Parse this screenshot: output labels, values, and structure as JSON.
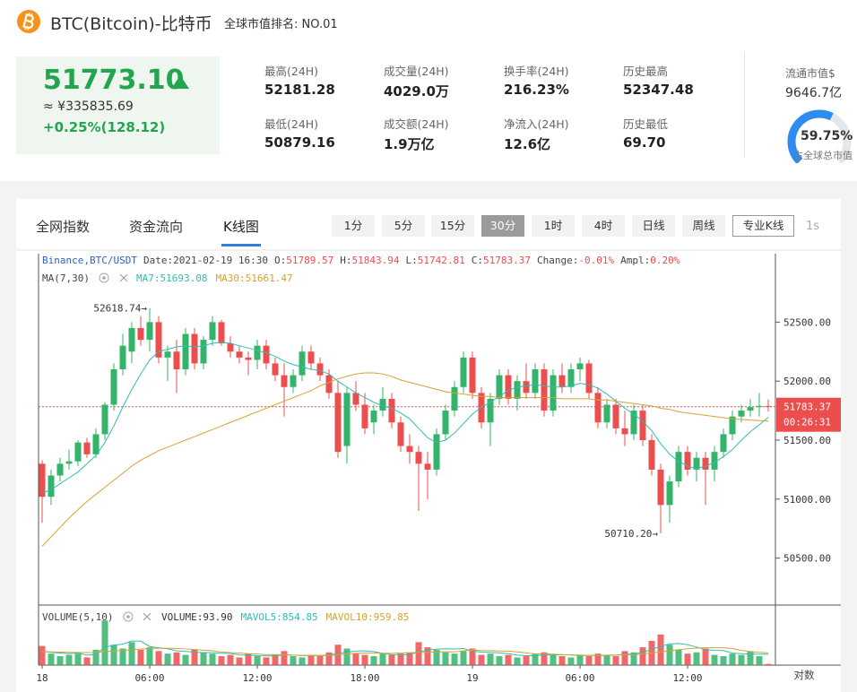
{
  "header": {
    "name": "BTC(Bitcoin)-比特币",
    "rank": "全球市值排名: NO.01"
  },
  "price": {
    "last": "51773.10",
    "cny": "≈ ¥335835.69",
    "change": "+0.25%(128.12)"
  },
  "stats": [
    {
      "label": "最高(24H)",
      "value": "52181.28"
    },
    {
      "label": "成交量(24H)",
      "value": "4029.0万"
    },
    {
      "label": "换手率(24H)",
      "value": "216.23%"
    },
    {
      "label": "历史最高",
      "value": "52347.48"
    },
    {
      "label": "最低(24H)",
      "value": "50879.16"
    },
    {
      "label": "成交额(24H)",
      "value": "1.9万亿"
    },
    {
      "label": "净流入(24H)",
      "value": "12.6亿"
    },
    {
      "label": "历史最低",
      "value": "69.70"
    }
  ],
  "market_cap": {
    "label": "流通市值$",
    "value": "9646.7亿",
    "share": {
      "value": 59.75,
      "label": "59.75%"
    },
    "share_label": "占全球总市值"
  },
  "tabs": [
    {
      "label": "全网指数",
      "active": false
    },
    {
      "label": "资金流向",
      "active": false
    },
    {
      "label": "K线图",
      "active": true
    }
  ],
  "intervals": [
    {
      "label": "1分",
      "active": false
    },
    {
      "label": "5分",
      "active": false
    },
    {
      "label": "15分",
      "active": false
    },
    {
      "label": "30分",
      "active": true
    },
    {
      "label": "1时",
      "active": false
    },
    {
      "label": "4时",
      "active": false
    },
    {
      "label": "日线",
      "active": false
    },
    {
      "label": "周线",
      "active": false
    }
  ],
  "pro_button": "专业K线",
  "refresh": "1s",
  "chart_data": {
    "type": "candlestick",
    "info": {
      "symbol": "Binance,BTC/USDT",
      "date": "Date:2021-02-19 16:30",
      "o": "O:",
      "h": "H:",
      "l": "L:",
      "c": "C:",
      "change_label": "Change:",
      "change": "-0.01%",
      "ampl_label": "Ampl:",
      "ampl": "0.20%"
    },
    "ma_label": "MA(7,30)",
    "volume_label": "VOLUME(5,10)",
    "countdown": "00:26:31",
    "log_toggle": "对数",
    "up_color": "#33b46a",
    "down_color": "#ec4d4d",
    "last_price_color": "#ec4d4d",
    "categories": [
      "18",
      null,
      null,
      null,
      null,
      null,
      null,
      null,
      null,
      null,
      null,
      null,
      "06:00",
      null,
      null,
      null,
      null,
      null,
      null,
      null,
      null,
      null,
      null,
      null,
      "12:00",
      null,
      null,
      null,
      null,
      null,
      null,
      null,
      null,
      null,
      null,
      null,
      "18:00",
      null,
      null,
      null,
      null,
      null,
      null,
      null,
      null,
      null,
      null,
      null,
      "19",
      null,
      null,
      null,
      null,
      null,
      null,
      null,
      null,
      null,
      null,
      null,
      "06:00",
      null,
      null,
      null,
      null,
      null,
      null,
      null,
      null,
      null,
      null,
      null,
      "12:00",
      null,
      null,
      null,
      null,
      null,
      null,
      null,
      null,
      null
    ],
    "ohlc": [
      [
        51300,
        51330,
        50800,
        51020
      ],
      [
        51020,
        51250,
        50950,
        51200
      ],
      [
        51200,
        51350,
        51150,
        51300
      ],
      [
        51300,
        51420,
        51250,
        51320
      ],
      [
        51320,
        51500,
        51280,
        51480
      ],
      [
        51480,
        51520,
        51350,
        51380
      ],
      [
        51380,
        51600,
        51350,
        51550
      ],
      [
        51550,
        51820,
        51500,
        51800
      ],
      [
        51800,
        52150,
        51750,
        52100
      ],
      [
        52100,
        52400,
        52050,
        52300
      ],
      [
        52250,
        52500,
        52150,
        52450
      ],
      [
        52450,
        52550,
        52300,
        52350
      ],
      [
        52350,
        52618.74,
        52250,
        52500
      ],
      [
        52500,
        52550,
        52150,
        52200
      ],
      [
        52200,
        52300,
        52000,
        52250
      ],
      [
        52250,
        52350,
        51900,
        52100
      ],
      [
        52100,
        52450,
        52050,
        52400
      ],
      [
        52400,
        52450,
        52100,
        52150
      ],
      [
        52150,
        52380,
        52100,
        52350
      ],
      [
        52350,
        52550,
        52300,
        52500
      ],
      [
        52500,
        52520,
        52300,
        52320
      ],
      [
        52320,
        52380,
        52200,
        52250
      ],
      [
        52250,
        52300,
        52150,
        52200
      ],
      [
        52200,
        52250,
        52050,
        52180
      ],
      [
        52180,
        52350,
        52100,
        52300
      ],
      [
        52300,
        52350,
        52100,
        52150
      ],
      [
        52150,
        52200,
        52000,
        52050
      ],
      [
        52050,
        52150,
        51700,
        51950
      ],
      [
        51950,
        52100,
        51900,
        52050
      ],
      [
        52050,
        52300,
        52000,
        52250
      ],
      [
        52250,
        52300,
        52100,
        52150
      ],
      [
        52150,
        52200,
        52000,
        52050
      ],
      [
        52050,
        52100,
        51850,
        51900
      ],
      [
        51900,
        52000,
        51350,
        51400
      ],
      [
        51450,
        51950,
        51300,
        51900
      ],
      [
        51900,
        52000,
        51750,
        51800
      ],
      [
        51800,
        51900,
        51550,
        51600
      ],
      [
        51650,
        51800,
        51550,
        51750
      ],
      [
        51750,
        51950,
        51700,
        51850
      ],
      [
        51850,
        51900,
        51600,
        51650
      ],
      [
        51650,
        51700,
        51400,
        51450
      ],
      [
        51450,
        51550,
        51300,
        51400
      ],
      [
        51400,
        51450,
        50900,
        51300
      ],
      [
        51300,
        51400,
        51000,
        51250
      ],
      [
        51250,
        51600,
        51200,
        51550
      ],
      [
        51550,
        51800,
        51500,
        51750
      ],
      [
        51750,
        52000,
        51700,
        51950
      ],
      [
        51950,
        52250,
        51900,
        52200
      ],
      [
        52200,
        52250,
        51850,
        51900
      ],
      [
        51900,
        51950,
        51600,
        51650
      ],
      [
        51650,
        51900,
        51450,
        51850
      ],
      [
        51850,
        52100,
        51800,
        52050
      ],
      [
        52050,
        52100,
        51800,
        51850
      ],
      [
        51850,
        52050,
        51750,
        52000
      ],
      [
        52000,
        52150,
        51850,
        51900
      ],
      [
        51900,
        52150,
        51850,
        52100
      ],
      [
        52100,
        52150,
        51700,
        51750
      ],
      [
        51750,
        52100,
        51700,
        52050
      ],
      [
        52050,
        52150,
        51900,
        51950
      ],
      [
        51950,
        52150,
        51900,
        52100
      ],
      [
        52100,
        52200,
        52000,
        52150
      ],
      [
        52150,
        52180,
        51850,
        51900
      ],
      [
        51900,
        51950,
        51600,
        51650
      ],
      [
        51650,
        51850,
        51600,
        51800
      ],
      [
        51800,
        51850,
        51550,
        51600
      ],
      [
        51600,
        51750,
        51450,
        51550
      ],
      [
        51550,
        51800,
        51500,
        51750
      ],
      [
        51750,
        51800,
        51450,
        51500
      ],
      [
        51500,
        51550,
        51200,
        51250
      ],
      [
        51250,
        51300,
        50710.2,
        50950
      ],
      [
        50950,
        51200,
        50800,
        51150
      ],
      [
        51150,
        51450,
        51100,
        51400
      ],
      [
        51400,
        51450,
        51200,
        51250
      ],
      [
        51250,
        51400,
        51150,
        51350
      ],
      [
        51350,
        51400,
        50950,
        51250
      ],
      [
        51250,
        51450,
        51150,
        51400
      ],
      [
        51400,
        51600,
        51350,
        51550
      ],
      [
        51550,
        51750,
        51500,
        51700
      ],
      [
        51700,
        51800,
        51650,
        51750
      ],
      [
        51750,
        51850,
        51700,
        51780
      ],
      [
        51780,
        51900,
        51700,
        51790
      ],
      [
        51789.57,
        51843.94,
        51742.81,
        51783.37
      ]
    ],
    "ylim": [
      50110,
      53080
    ],
    "yticks": [
      {
        "value": 50500,
        "label": "50500.00"
      },
      {
        "value": 51000,
        "label": "51000.00"
      },
      {
        "value": 51500,
        "label": "51500.00"
      },
      {
        "value": 52000,
        "label": "52000.00"
      },
      {
        "value": 52500,
        "label": "52500.00"
      }
    ],
    "annotations": [
      {
        "value": 52618.74,
        "label": "52618.74→"
      },
      {
        "value": 50710.2,
        "label": "50710.20→"
      }
    ],
    "ma": [
      {
        "name": "MA7:",
        "color": "#2fbdb5",
        "values": [
          51050,
          51080,
          51130,
          51180,
          51230,
          51300,
          51370,
          51480,
          51620,
          51780,
          51930,
          52060,
          52180,
          52250,
          52270,
          52290,
          52300,
          52290,
          52300,
          52320,
          52330,
          52320,
          52300,
          52280,
          52260,
          52240,
          52210,
          52170,
          52140,
          52120,
          52100,
          52090,
          52060,
          52000,
          51950,
          51900,
          51860,
          51820,
          51790,
          51770,
          51730,
          51680,
          51600,
          51520,
          51480,
          51500,
          51560,
          51640,
          51720,
          51780,
          51820,
          51870,
          51920,
          51950,
          51960,
          51970,
          51960,
          51950,
          51950,
          51960,
          51980,
          51970,
          51940,
          51890,
          51830,
          51770,
          51720,
          51660,
          51580,
          51470,
          51380,
          51320,
          51280,
          51260,
          51280,
          51310,
          51360,
          51420,
          51500,
          51570,
          51630,
          51693.08
        ]
      },
      {
        "name": "MA30:",
        "color": "#d6a232",
        "values": [
          50600,
          50680,
          50760,
          50840,
          50910,
          50980,
          51040,
          51100,
          51160,
          51220,
          51280,
          51330,
          51370,
          51410,
          51440,
          51470,
          51500,
          51530,
          51560,
          51590,
          51620,
          51650,
          51680,
          51710,
          51740,
          51770,
          51800,
          51830,
          51860,
          51890,
          51920,
          51960,
          51990,
          52020,
          52040,
          52060,
          52070,
          52070,
          52060,
          52040,
          52010,
          51990,
          51970,
          51950,
          51930,
          51910,
          51900,
          51890,
          51880,
          51870,
          51870,
          51860,
          51860,
          51860,
          51860,
          51860,
          51860,
          51860,
          51850,
          51850,
          51850,
          51850,
          51840,
          51840,
          51830,
          51820,
          51810,
          51800,
          51790,
          51770,
          51760,
          51740,
          51730,
          51720,
          51710,
          51700,
          51690,
          51680,
          51675,
          51670,
          51665,
          51661.47
        ]
      }
    ],
    "volume": {
      "name": "VOLUME:",
      "ylim": [
        0,
        4500
      ],
      "values": [
        1500,
        900,
        700,
        800,
        900,
        600,
        1200,
        3500,
        1600,
        1300,
        1800,
        1200,
        1400,
        1100,
        900,
        1000,
        800,
        1200,
        1000,
        900,
        700,
        800,
        600,
        900,
        700,
        600,
        800,
        1100,
        700,
        600,
        800,
        700,
        1000,
        1600,
        1300,
        900,
        800,
        700,
        900,
        800,
        900,
        1000,
        1800,
        1400,
        1200,
        1000,
        900,
        1100,
        1300,
        800,
        900,
        700,
        800,
        600,
        700,
        900,
        1000,
        800,
        700,
        600,
        800,
        700,
        900,
        800,
        700,
        1100,
        1000,
        1400,
        1900,
        2400,
        1600,
        1200,
        900,
        1000,
        1300,
        800,
        700,
        900,
        800,
        1100,
        700,
        93.9
      ],
      "value_labels": [
        null,
        null,
        null,
        null,
        null,
        null,
        null,
        null,
        null,
        null,
        null,
        null,
        null,
        null,
        null,
        null,
        null,
        null,
        null,
        null,
        null,
        null,
        null,
        null,
        null,
        null,
        null,
        null,
        null,
        null,
        null,
        null,
        null,
        null,
        null,
        null,
        null,
        null,
        null,
        null,
        null,
        null,
        null,
        null,
        null,
        null,
        null,
        null,
        null,
        null,
        null,
        null,
        null,
        null,
        null,
        null,
        null,
        null,
        null,
        null,
        null,
        null,
        null,
        null,
        null,
        null,
        null,
        null,
        null,
        null,
        null,
        null,
        null,
        null,
        null,
        null,
        null,
        null,
        null,
        null,
        null,
        "93.90"
      ]
    },
    "mavol": [
      {
        "name": "MAVOL5:",
        "color": "#2fbdb5",
        "values": [
          1100,
          1000,
          950,
          900,
          960,
          780,
          840,
          1400,
          1560,
          1640,
          1900,
          1880,
          1460,
          1360,
          1280,
          1120,
          1080,
          1000,
          980,
          980,
          920,
          920,
          800,
          780,
          740,
          720,
          720,
          820,
          780,
          760,
          760,
          760,
          800,
          920,
          1020,
          1100,
          1120,
          1060,
          920,
          820,
          820,
          820,
          1040,
          1180,
          1260,
          1280,
          1260,
          1300,
          1100,
          1020,
          1000,
          960,
          900,
          780,
          740,
          740,
          800,
          800,
          820,
          800,
          760,
          760,
          760,
          760,
          780,
          840,
          860,
          1000,
          1220,
          1480,
          1660,
          1700,
          1600,
          1420,
          1200,
          1160,
          1140,
          940,
          900,
          860,
          860,
          854.85
        ]
      },
      {
        "name": "MAVOL10:",
        "color": "#d6a232",
        "values": [
          1050,
          1040,
          1020,
          1000,
          990,
          980,
          990,
          1060,
          1120,
          1140,
          1200,
          1260,
          1300,
          1320,
          1320,
          1310,
          1270,
          1230,
          1170,
          1130,
          1030,
          980,
          950,
          900,
          870,
          820,
          830,
          820,
          780,
          760,
          740,
          740,
          760,
          800,
          880,
          930,
          940,
          940,
          930,
          920,
          960,
          970,
          1000,
          1000,
          1040,
          1050,
          1040,
          1120,
          1180,
          1140,
          1130,
          1110,
          1100,
          1040,
          960,
          880,
          880,
          860,
          820,
          800,
          780,
          770,
          760,
          780,
          790,
          800,
          810,
          880,
          960,
          1040,
          1120,
          1210,
          1280,
          1340,
          1360,
          1360,
          1350,
          1300,
          1150,
          1060,
          1000,
          959.85
        ]
      }
    ]
  }
}
